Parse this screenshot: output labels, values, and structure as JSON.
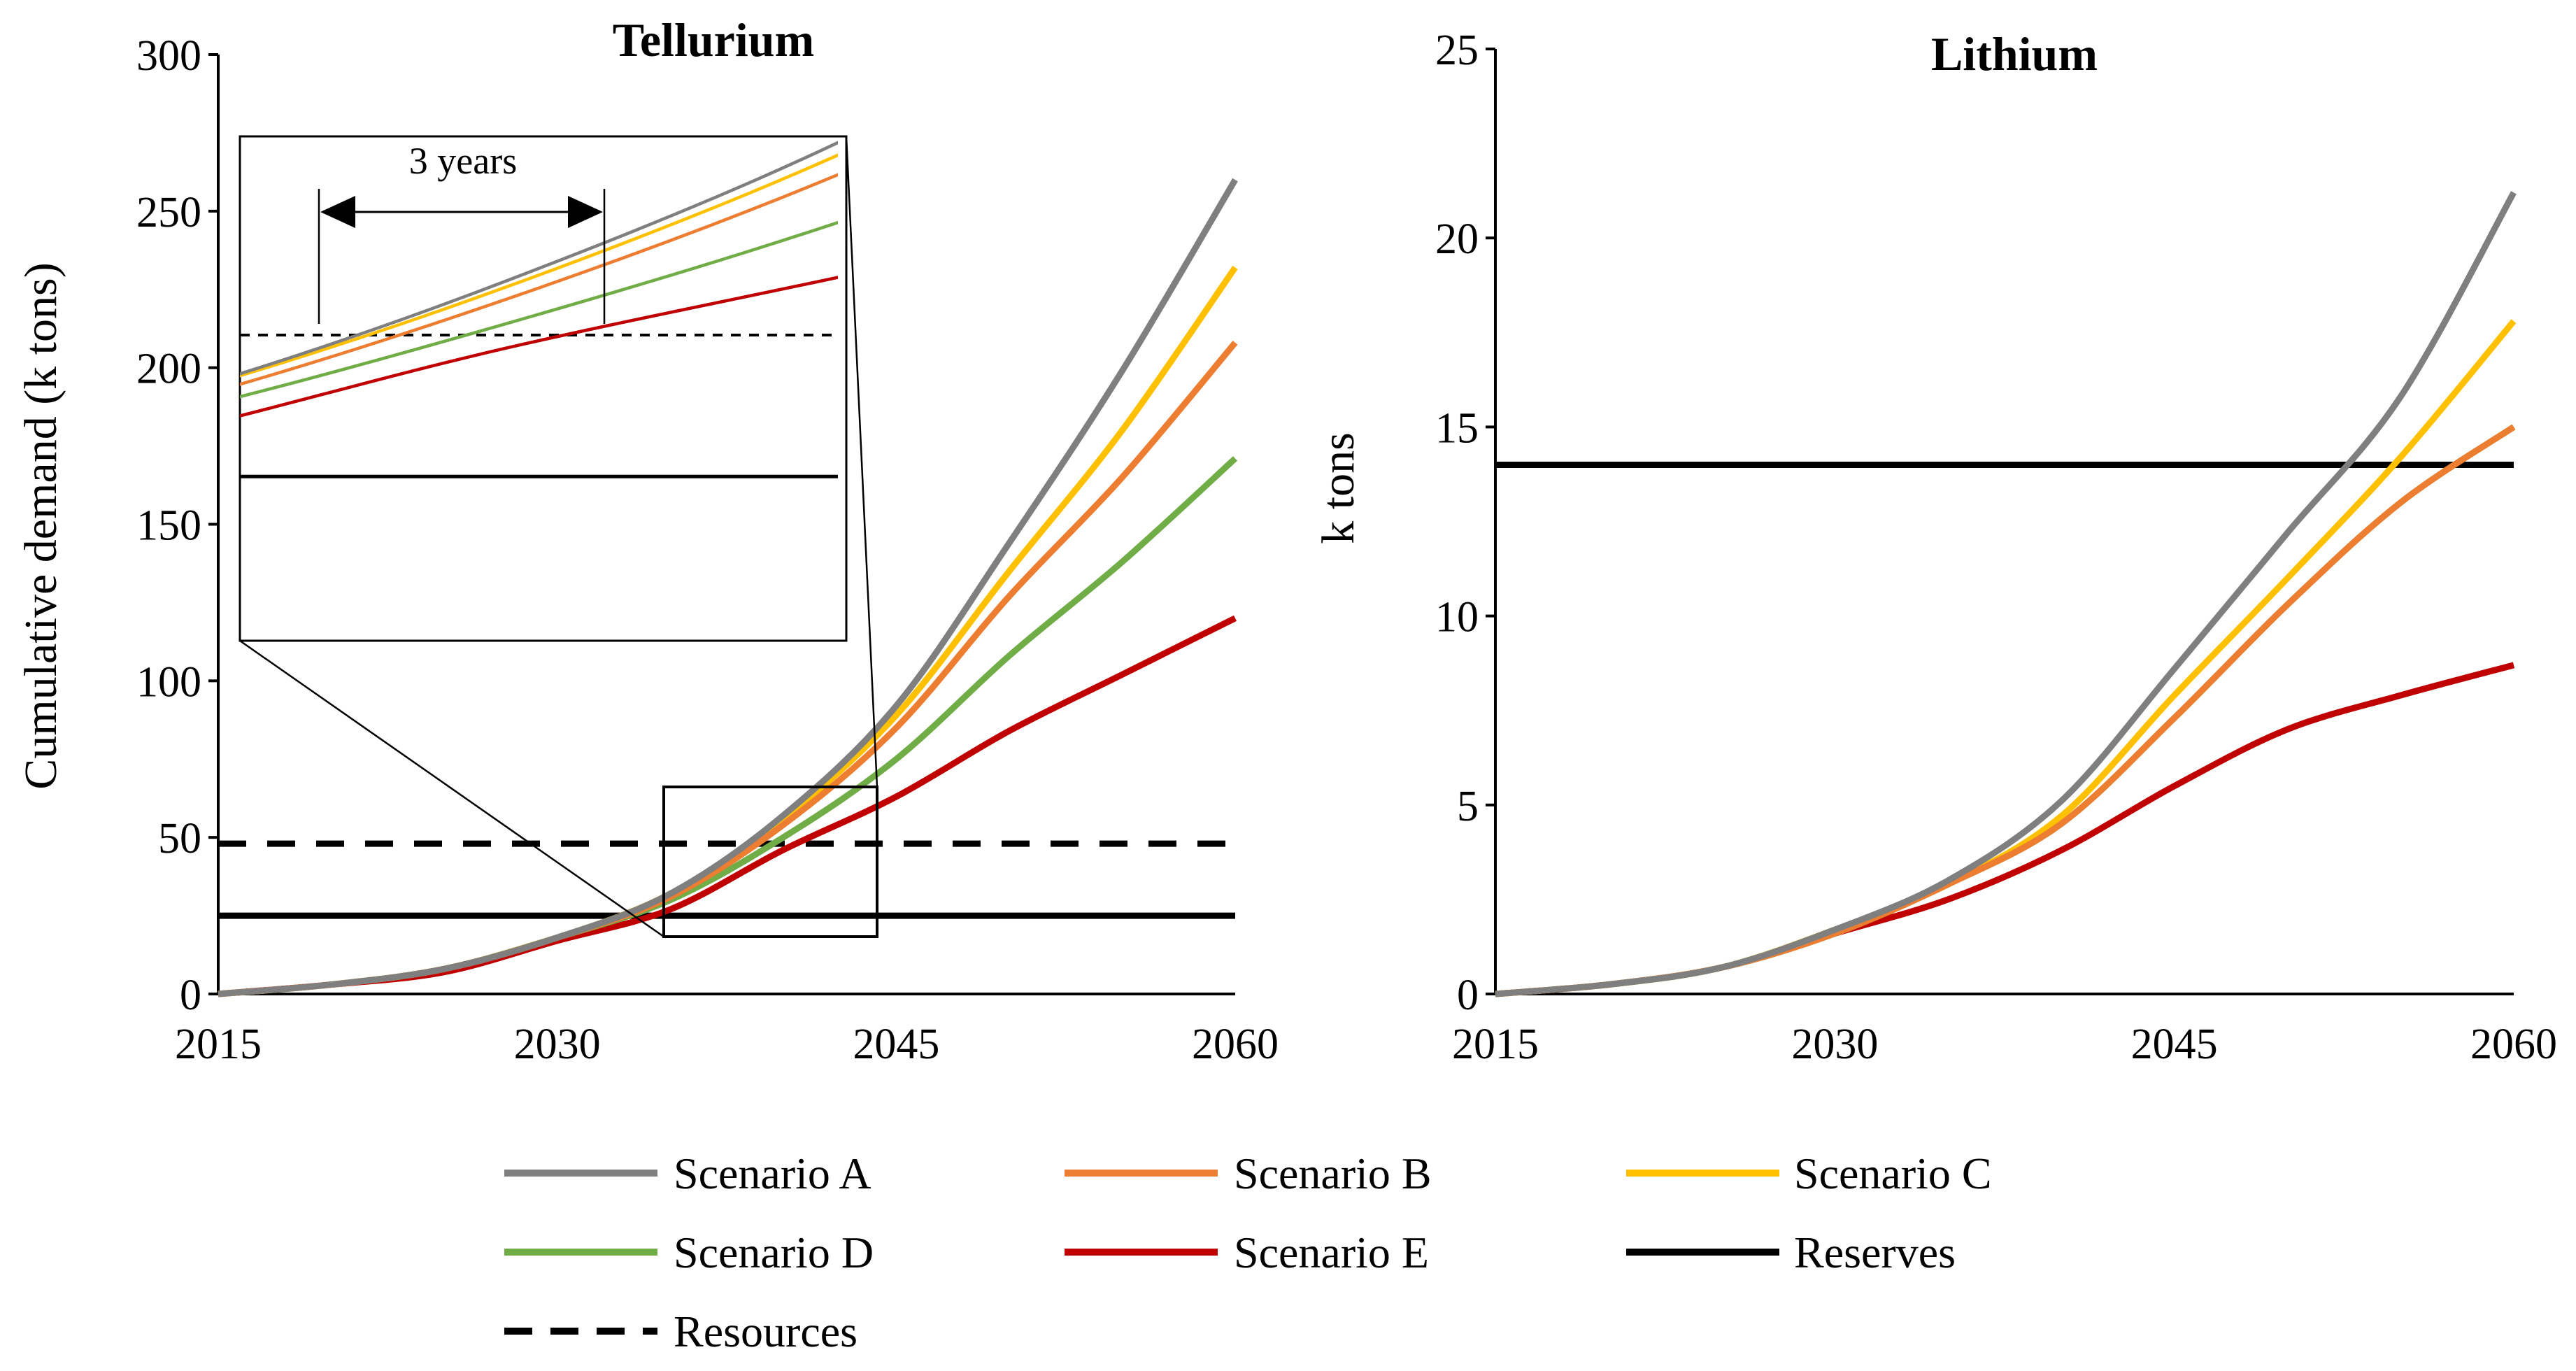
{
  "chart_data": [
    {
      "type": "line",
      "title": "Tellurium",
      "ylabel": "Cumulative demand  (k tons)",
      "xlabel": "",
      "x": [
        2015,
        2020,
        2025,
        2030,
        2035,
        2040,
        2045,
        2050,
        2055,
        2060
      ],
      "xticks": [
        2015,
        2030,
        2045,
        2060
      ],
      "yticks": [
        0,
        50,
        100,
        150,
        200,
        250,
        300
      ],
      "xlim": [
        2015,
        2060
      ],
      "ylim": [
        0,
        300
      ],
      "series": [
        {
          "name": "Scenario A",
          "color": "#7f7f7f",
          "values": [
            0,
            3,
            8,
            18,
            32,
            57,
            92,
            144,
            199,
            260
          ]
        },
        {
          "name": "Scenario B",
          "color": "#ed7d31",
          "values": [
            0,
            3,
            8,
            18,
            31,
            54,
            85,
            127,
            165,
            208
          ]
        },
        {
          "name": "Scenario C",
          "color": "#ffc000",
          "values": [
            0,
            3,
            8,
            18,
            32,
            56,
            89,
            135,
            180,
            232
          ]
        },
        {
          "name": "Scenario D",
          "color": "#70ad47",
          "values": [
            0,
            3,
            8,
            18,
            30,
            50,
            75,
            108,
            138,
            171
          ]
        },
        {
          "name": "Scenario E",
          "color": "#c00000",
          "values": [
            0,
            3,
            7,
            17,
            27,
            46,
            63,
            84,
            102,
            120
          ]
        }
      ],
      "reserves": 25,
      "resources": 48,
      "inset": {
        "annotation": "3 years",
        "xlim": [
          2037.2,
          2043.5
        ],
        "ylim": [
          -1.7,
          80.3
        ]
      },
      "grid": false
    },
    {
      "type": "line",
      "title": "Lithium",
      "ylabel": "k tons",
      "xlabel": "",
      "x": [
        2015,
        2020,
        2025,
        2030,
        2035,
        2040,
        2045,
        2050,
        2055,
        2060
      ],
      "xticks": [
        2015,
        2030,
        2045,
        2060
      ],
      "yticks": [
        0,
        5,
        10,
        15,
        20,
        25
      ],
      "xlim": [
        2015,
        2060
      ],
      "ylim": [
        0,
        25
      ],
      "series": [
        {
          "name": "Scenario A",
          "color": "#7f7f7f",
          "values": [
            0,
            0.25,
            0.7,
            1.7,
            3.0,
            5.1,
            8.6,
            12.2,
            15.8,
            21.2
          ]
        },
        {
          "name": "Scenario B",
          "color": "#ed7d31",
          "values": [
            0,
            0.25,
            0.7,
            1.6,
            2.9,
            4.5,
            7.3,
            10.3,
            13.0,
            15.0
          ]
        },
        {
          "name": "Scenario C",
          "color": "#ffc000",
          "values": [
            0,
            0.25,
            0.7,
            1.7,
            2.9,
            4.7,
            7.9,
            11.0,
            14.2,
            17.8
          ]
        },
        {
          "name": "Scenario D",
          "color": "#70ad47",
          "values": [
            0,
            0.25,
            0.7,
            1.6,
            2.9,
            4.5,
            7.3,
            10.3,
            13.0,
            15.0
          ]
        },
        {
          "name": "Scenario E",
          "color": "#c00000",
          "values": [
            0,
            0.25,
            0.7,
            1.6,
            2.5,
            3.8,
            5.5,
            7.0,
            7.9,
            8.7
          ]
        }
      ],
      "reserves": 14,
      "grid": false
    }
  ],
  "legend": {
    "placement": "bottom",
    "items": [
      {
        "label": "Scenario A",
        "color": "#7f7f7f",
        "style": "solid"
      },
      {
        "label": "Scenario B",
        "color": "#ed7d31",
        "style": "solid"
      },
      {
        "label": "Scenario C",
        "color": "#ffc000",
        "style": "solid"
      },
      {
        "label": "Scenario D",
        "color": "#70ad47",
        "style": "solid"
      },
      {
        "label": "Scenario E",
        "color": "#c00000",
        "style": "solid"
      },
      {
        "label": "Reserves",
        "color": "#000000",
        "style": "solid"
      },
      {
        "label": "Resources",
        "color": "#000000",
        "style": "dashed"
      }
    ]
  }
}
